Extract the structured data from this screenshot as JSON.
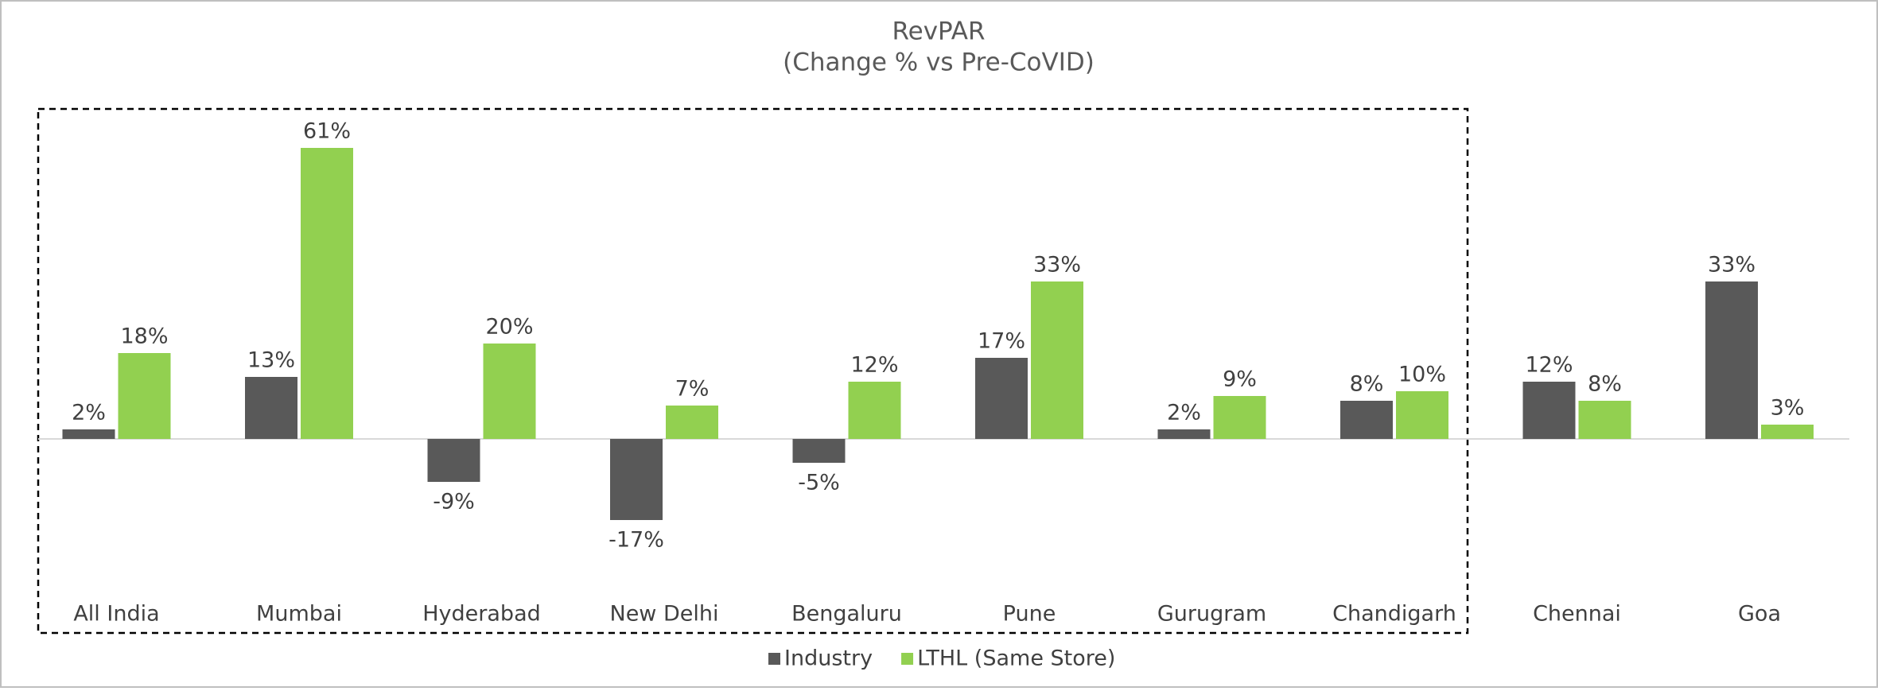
{
  "chart_data": {
    "type": "bar",
    "title": "RevPAR",
    "subtitle": "(Change % vs Pre-CoVID)",
    "categories": [
      "All India",
      "Mumbai",
      "Hyderabad",
      "New Delhi",
      "Bengaluru",
      "Pune",
      "Gurugram",
      "Chandigarh",
      "Chennai",
      "Goa"
    ],
    "series": [
      {
        "name": "Industry",
        "color": "#595959",
        "values": [
          2,
          13,
          -9,
          -17,
          -5,
          17,
          2,
          8,
          12,
          33
        ],
        "value_labels": [
          "2%",
          "13%",
          "-9%",
          "-17%",
          "-5%",
          "17%",
          "2%",
          "8%",
          "12%",
          "33%"
        ]
      },
      {
        "name": "LTHL (Same Store)",
        "color": "#92d050",
        "values": [
          18,
          61,
          20,
          7,
          12,
          33,
          9,
          10,
          8,
          3
        ],
        "value_labels": [
          "18%",
          "61%",
          "20%",
          "7%",
          "12%",
          "33%",
          "9%",
          "10%",
          "8%",
          "3%"
        ]
      }
    ],
    "legend": "bottom"
  }
}
